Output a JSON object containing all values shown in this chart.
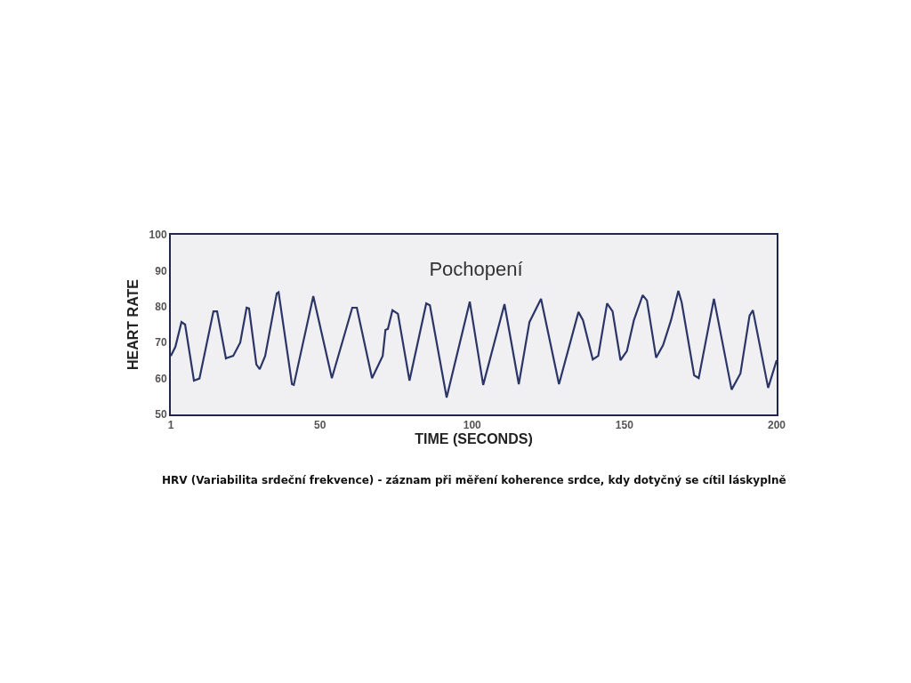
{
  "chart_data": {
    "type": "line",
    "title": "Pochopení",
    "xlabel": "TIME (SECONDS)",
    "ylabel": "HEART RATE",
    "x": [
      1,
      2.5,
      4.5,
      5.7,
      8.6,
      10.4,
      15.0,
      16.2,
      19.1,
      21.5,
      23.8,
      25.9,
      26.7,
      29.1,
      30.2,
      32.0,
      35.8,
      36.4,
      40.8,
      41.4,
      47.8,
      53.9,
      60.6,
      62.1,
      67.1,
      70.6,
      71.5,
      72.3,
      73.8,
      75.6,
      79.4,
      84.9,
      86.1,
      91.6,
      99.2,
      103.6,
      110.6,
      115.3,
      118.8,
      122.6,
      128.5,
      134.9,
      136.4,
      139.6,
      141.4,
      144.3,
      146.1,
      148.7,
      150.8,
      153.1,
      156.0,
      157.4,
      160.4,
      162.7,
      165.3,
      167.7,
      168.8,
      172.9,
      174.4,
      179.4,
      185.2,
      188.1,
      191.1,
      192.2,
      197.2,
      200
    ],
    "series": [
      {
        "color": "#2b3566",
        "values": [
          66.3,
          68.8,
          75.7,
          75,
          59.4,
          60,
          78.7,
          78.7,
          65.6,
          66.3,
          70,
          79.7,
          79.5,
          63.9,
          62.6,
          66.3,
          83.7,
          84,
          58.4,
          58.2,
          82.9,
          60.1,
          79.7,
          79.7,
          60.1,
          66.3,
          73.5,
          73.8,
          79,
          78,
          59.4,
          80.9,
          80.4,
          54.7,
          81.4,
          58.2,
          80.7,
          58.4,
          75.7,
          82.2,
          58.4,
          78.5,
          76.2,
          65.3,
          66.3,
          80.9,
          78.7,
          65.1,
          67.6,
          76.2,
          83.2,
          81.7,
          65.8,
          69.3,
          76.2,
          84.4,
          81.2,
          60.9,
          60.1,
          82.2,
          56.9,
          61.4,
          77.5,
          79,
          57.4,
          65.1
        ]
      }
    ],
    "xlim": [
      1,
      200
    ],
    "xticks": [
      1,
      50,
      100,
      150,
      200
    ],
    "ylim": [
      50,
      100
    ],
    "yticks": [
      50,
      60,
      70,
      80,
      90,
      100
    ],
    "marker": "none",
    "line_style": "solid",
    "annotations": [
      "HRV (Variabilita srdeční frekvence) - záznam při měření koherence srdce, kdy dotyčný se cítil láskyplně"
    ]
  }
}
